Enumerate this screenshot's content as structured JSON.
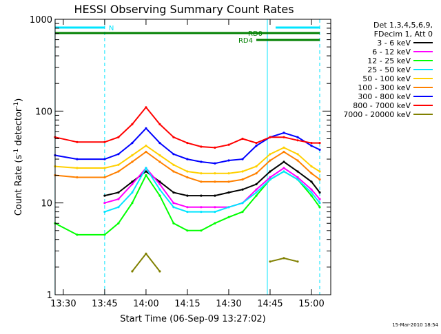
{
  "chart_data": {
    "type": "line",
    "title": "HESSI Observing Summary Count Rates",
    "xlabel": "Start Time (06-Sep-09 13:27:02)",
    "ylabel": "Count Rate (s⁻¹ detector⁻¹)",
    "ylabel_main": "Count Rate (s",
    "ylabel_sup1": "-1",
    "ylabel_mid": " detector",
    "ylabel_sup2": "-1",
    "ylabel_end": ")",
    "y_scale": "log",
    "ylim": [
      1,
      1000
    ],
    "xlim": [
      "13:27:02",
      "15:07:00"
    ],
    "x_ticks": [
      "13:30",
      "13:45",
      "14:00",
      "14:15",
      "14:30",
      "14:45",
      "15:00"
    ],
    "y_ticks": [
      "1",
      "10",
      "100",
      "1000"
    ],
    "grid": false,
    "legend_position": "right",
    "legend_header": [
      "Det 1,3,4,5,6,9,",
      "FDecim 1, Att 0"
    ],
    "footer_timestamp": "15-Mar-2010 18:54",
    "x": [
      "13:27",
      "13:35",
      "13:45",
      "13:50",
      "13:55",
      "14:00",
      "14:05",
      "14:10",
      "14:15",
      "14:20",
      "14:25",
      "14:30",
      "14:35",
      "14:40",
      "14:45",
      "14:50",
      "14:55",
      "15:00",
      "15:03",
      "15:05"
    ],
    "series": [
      {
        "name": "3 - 6 keV",
        "color": "#000000",
        "values": [
          null,
          null,
          12,
          13,
          17,
          22,
          17,
          13,
          12,
          12,
          12,
          13,
          14,
          16,
          22,
          28,
          22,
          17,
          13,
          null
        ]
      },
      {
        "name": "6 - 12 keV",
        "color": "#ff00ff",
        "values": [
          null,
          null,
          10,
          11,
          16,
          24,
          16,
          10,
          9,
          9,
          9,
          9,
          10,
          14,
          19,
          24,
          19,
          14,
          11,
          null
        ]
      },
      {
        "name": "12 - 25 keV",
        "color": "#00ff00",
        "values": [
          6,
          4.5,
          4.5,
          6,
          10,
          20,
          12,
          6,
          5,
          5,
          6,
          7,
          8,
          12,
          18,
          22,
          18,
          12,
          9,
          null
        ]
      },
      {
        "name": "25 - 50 keV",
        "color": "#00e5ff",
        "values": [
          null,
          null,
          8,
          9,
          13,
          24,
          14,
          9,
          8,
          8,
          8,
          9,
          10,
          13,
          18,
          22,
          18,
          13,
          10,
          null
        ]
      },
      {
        "name": "50 - 100 keV",
        "color": "#ffd000",
        "values": [
          25,
          24,
          24,
          26,
          33,
          42,
          33,
          26,
          22,
          21,
          21,
          21,
          22,
          25,
          34,
          40,
          34,
          25,
          22,
          null
        ]
      },
      {
        "name": "100 - 300 keV",
        "color": "#ff8000",
        "values": [
          20,
          19,
          19,
          22,
          28,
          36,
          28,
          22,
          19,
          17,
          17,
          17,
          18,
          21,
          29,
          36,
          29,
          21,
          18,
          null
        ]
      },
      {
        "name": "300 - 800 keV",
        "color": "#0000ff",
        "values": [
          33,
          30,
          30,
          34,
          45,
          65,
          45,
          34,
          30,
          28,
          27,
          29,
          30,
          42,
          52,
          58,
          52,
          42,
          38,
          null
        ]
      },
      {
        "name": "800 - 7000 keV",
        "color": "#ff0000",
        "values": [
          52,
          46,
          46,
          52,
          72,
          110,
          72,
          52,
          45,
          41,
          40,
          43,
          50,
          45,
          52,
          52,
          48,
          45,
          45,
          null
        ]
      },
      {
        "name": "7000 - 20000 keV",
        "color": "#808000",
        "values": [
          null,
          null,
          null,
          null,
          1.8,
          2.8,
          1.8,
          null,
          null,
          null,
          null,
          null,
          null,
          null,
          2.3,
          2.5,
          2.3,
          null,
          null,
          null
        ]
      }
    ],
    "flag_bars": [
      {
        "label": "N",
        "color": "#00e5ff",
        "start": "13:27",
        "end": "13:45"
      },
      {
        "label": "",
        "color": "#00e5ff",
        "start": "14:47",
        "end": "15:03"
      },
      {
        "label": "RD0",
        "color": "#008000",
        "start": "13:27",
        "end": "15:03"
      },
      {
        "label": "RD4",
        "color": "#008000",
        "start": "14:40",
        "end": "15:03"
      }
    ],
    "vertical_markers": [
      {
        "time": "13:27",
        "style": "solid",
        "color": "#00e5ff"
      },
      {
        "time": "13:45",
        "style": "dashed",
        "color": "#00e5ff"
      },
      {
        "time": "14:44",
        "style": "solid",
        "color": "#00e5ff"
      },
      {
        "time": "15:03",
        "style": "dashed",
        "color": "#00e5ff"
      }
    ]
  }
}
